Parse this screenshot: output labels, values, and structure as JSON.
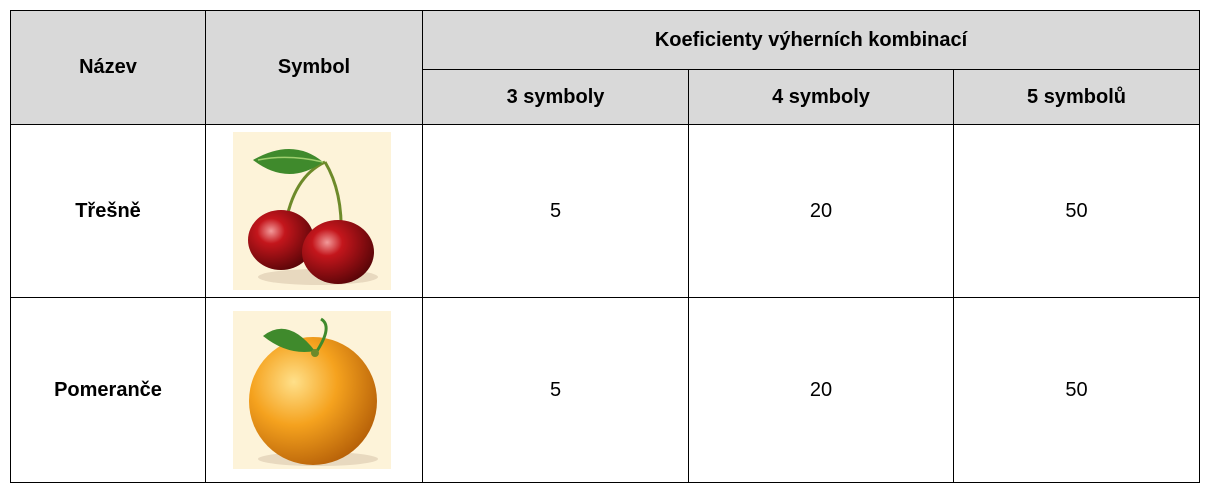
{
  "table": {
    "header": {
      "name": "Název",
      "symbol": "Symbol",
      "group": "Koeficienty výherních kombinací",
      "columns": [
        "3 symboly",
        "4 symboly",
        "5 symbolů"
      ]
    },
    "rows": [
      {
        "name": "Třešně",
        "values": [
          5,
          20,
          50
        ]
      },
      {
        "name": "Pomeranče",
        "values": [
          5,
          20,
          50
        ]
      }
    ]
  }
}
